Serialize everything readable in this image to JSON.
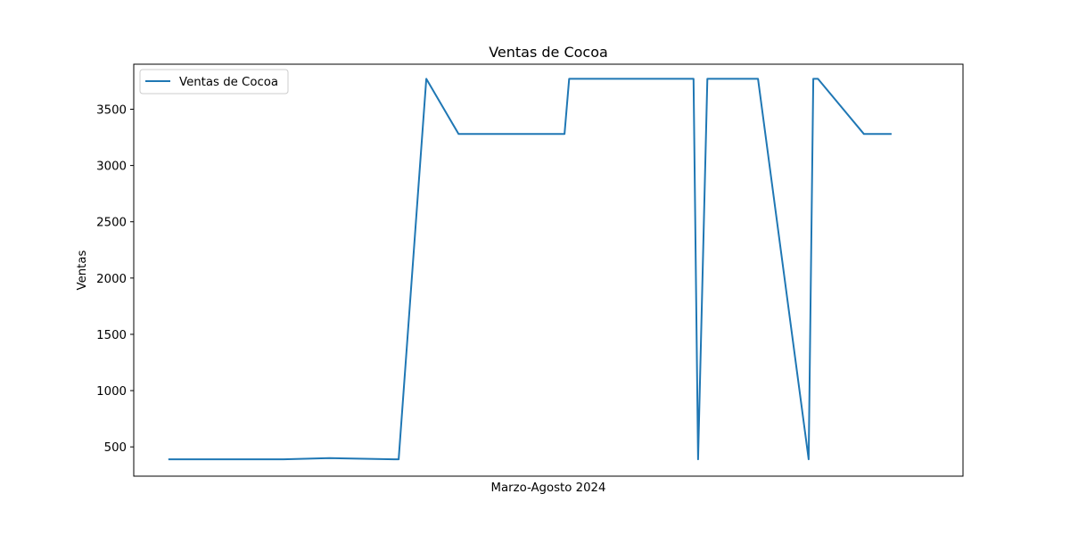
{
  "chart_data": {
    "type": "line",
    "title": "Ventas de Cocoa",
    "xlabel": "Marzo-Agosto 2024",
    "ylabel": "Ventas",
    "x_tick_labels": [],
    "y_ticks": [
      500,
      1000,
      1500,
      2000,
      2500,
      3000,
      3500
    ],
    "ylim": [
      240,
      3900
    ],
    "xlim": [
      -7.5,
      172.5
    ],
    "grid": false,
    "legend_position": "top-left",
    "series": [
      {
        "name": "Ventas de Cocoa",
        "color": "#1f77b4",
        "x": [
          0,
          25,
          35,
          49,
          50,
          56,
          63,
          86,
          87,
          114,
          115,
          117,
          125,
          128,
          139,
          140,
          141,
          151,
          157
        ],
        "values": [
          390,
          390,
          400,
          390,
          390,
          3770,
          3280,
          3280,
          3770,
          3770,
          390,
          3770,
          3770,
          3770,
          390,
          3770,
          3770,
          3280,
          3280
        ]
      }
    ]
  }
}
